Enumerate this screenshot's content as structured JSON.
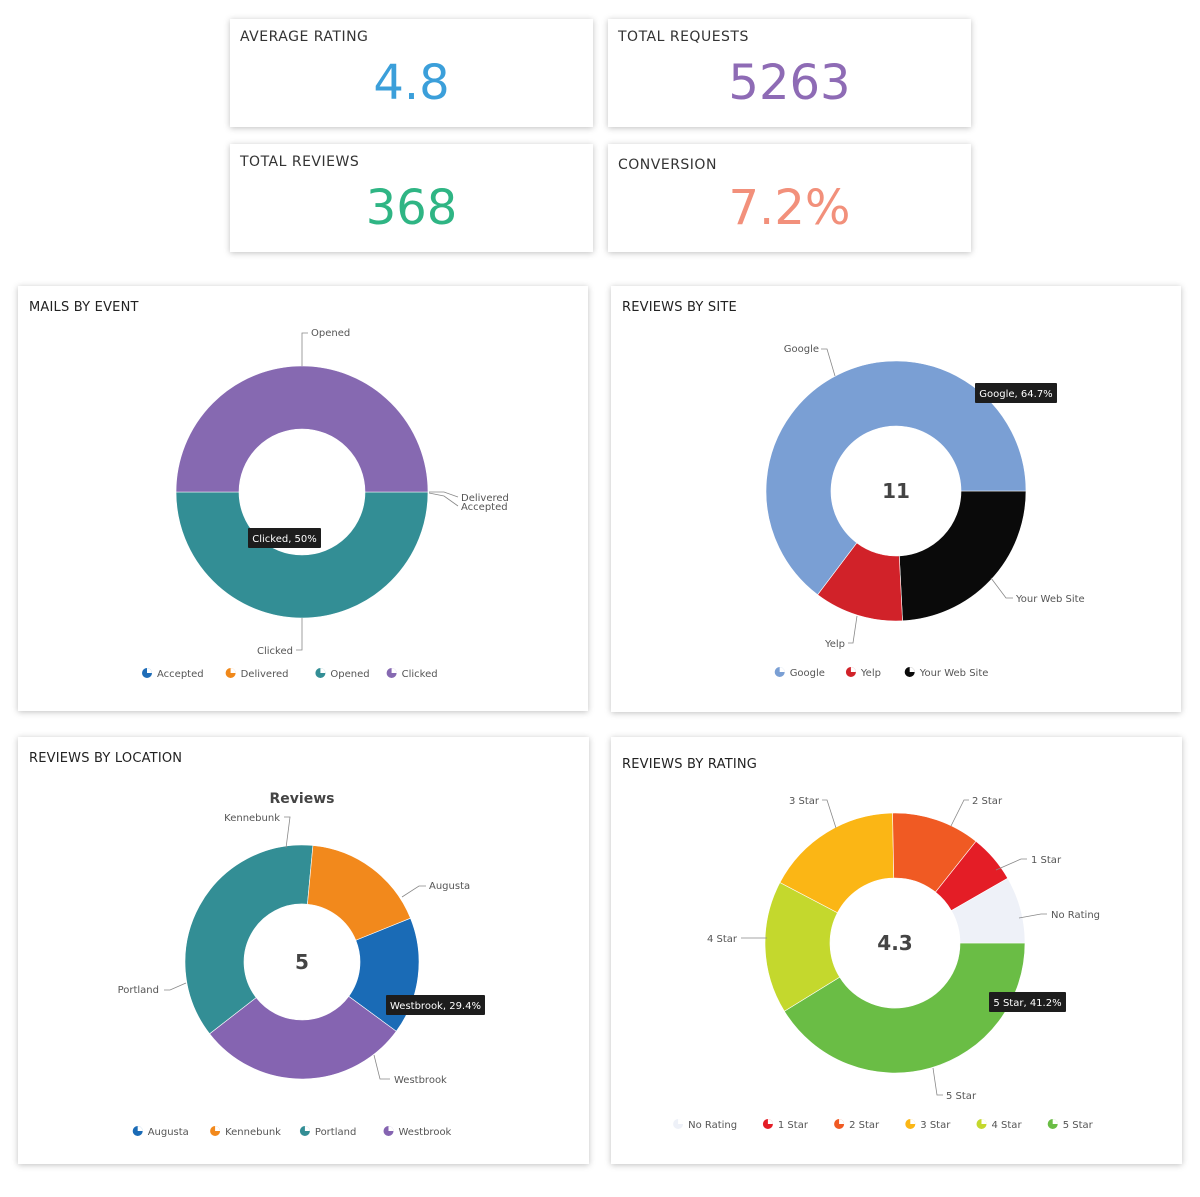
{
  "kpis": {
    "avg_rating": {
      "label": "AVERAGE RATING",
      "value": "4.8",
      "color": "#3b9fda"
    },
    "total_requests": {
      "label": "TOTAL REQUESTS",
      "value": "5263",
      "color": "#8e6bb5"
    },
    "total_reviews": {
      "label": "TOTAL REVIEWS",
      "value": "368",
      "color": "#2fb584"
    },
    "conversion": {
      "label": "CONVERSION",
      "value": "7.2%",
      "color": "#f2907b"
    }
  },
  "chart_data": [
    {
      "id": "mails",
      "type": "pie",
      "title": "MAILS BY EVENT",
      "center_text": "",
      "slices": [
        {
          "name": "Accepted",
          "value": 0.0001,
          "color": "#1f6db8"
        },
        {
          "name": "Delivered",
          "value": 0.0001,
          "color": "#f0881a"
        },
        {
          "name": "Opened",
          "value": 50,
          "color": "#338e95"
        },
        {
          "name": "Clicked",
          "value": 50,
          "color": "#8669b1"
        }
      ],
      "tooltip": "Clicked, 50%",
      "legend": [
        "Accepted",
        "Delivered",
        "Opened",
        "Clicked"
      ]
    },
    {
      "id": "site",
      "type": "pie",
      "title": "REVIEWS BY SITE",
      "center_text": "11",
      "slices": [
        {
          "name": "Your Web Site",
          "value": 24.2,
          "color": "#0a0a0a"
        },
        {
          "name": "Yelp",
          "value": 11.1,
          "color": "#d12229"
        },
        {
          "name": "Google",
          "value": 64.7,
          "color": "#7a9fd4"
        }
      ],
      "tooltip": "Google, 64.7%",
      "legend": [
        "Google",
        "Yelp",
        "Your Web Site"
      ]
    },
    {
      "id": "location",
      "type": "pie",
      "title": "REVIEWS BY LOCATION",
      "subtitle": "Reviews",
      "center_text": "5",
      "slices": [
        {
          "name": "Augusta",
          "value": 16.2,
          "color": "#1a6bb6"
        },
        {
          "name": "Westbrook",
          "value": 29.4,
          "color": "#8564b1"
        },
        {
          "name": "Portland",
          "value": 37.0,
          "color": "#338e95"
        },
        {
          "name": "Kennebunk",
          "value": 17.4,
          "color": "#f2891c"
        }
      ],
      "tooltip": "Westbrook, 29.4%",
      "legend": [
        "Augusta",
        "Kennebunk",
        "Portland",
        "Westbrook"
      ]
    },
    {
      "id": "rating",
      "type": "pie",
      "title": "REVIEWS BY RATING",
      "center_text": "4.3",
      "slices": [
        {
          "name": "5 Star",
          "value": 41.2,
          "color": "#6abd45"
        },
        {
          "name": "4 Star",
          "value": 16.5,
          "color": "#c4d82d"
        },
        {
          "name": "3 Star",
          "value": 17.0,
          "color": "#fbb615"
        },
        {
          "name": "2 Star",
          "value": 11.0,
          "color": "#f05a23"
        },
        {
          "name": "1 Star",
          "value": 6.0,
          "color": "#e41d26"
        },
        {
          "name": "No Rating",
          "value": 8.3,
          "color": "#eef1f8"
        }
      ],
      "tooltip": "5 Star, 41.2%",
      "legend": [
        "No Rating",
        "1 Star",
        "2 Star",
        "3 Star",
        "4 Star",
        "5 Star"
      ]
    }
  ]
}
